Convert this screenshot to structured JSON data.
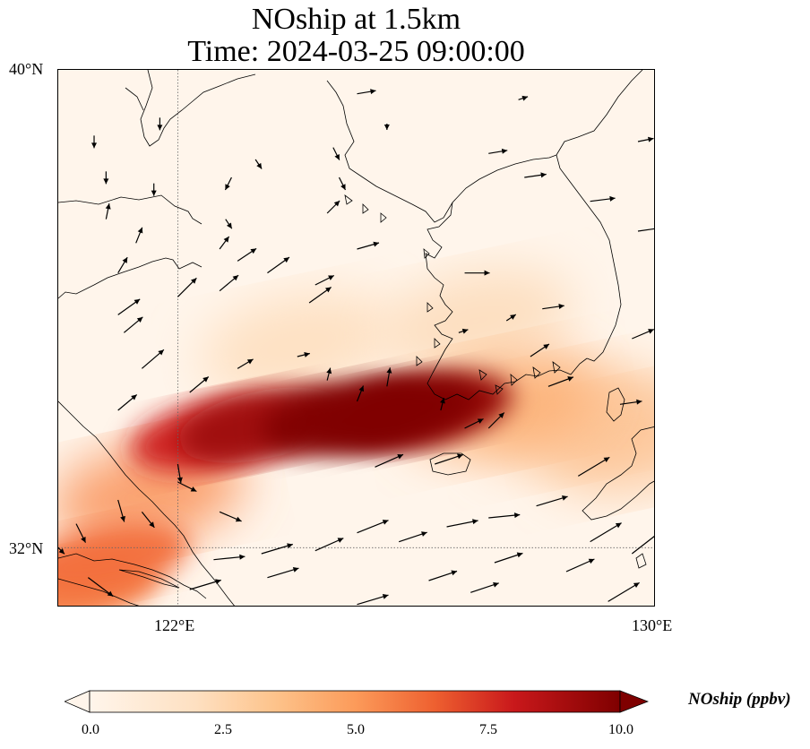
{
  "title": {
    "line1": "NOship at 1.5km",
    "line2": "Time: 2024-03-25 09:00:00"
  },
  "map": {
    "lat_range": [
      31,
      40
    ],
    "lon_range": [
      120,
      130
    ],
    "lat_ticks": [
      {
        "value": 40,
        "label": "40°N"
      },
      {
        "value": 32,
        "label": "32°N"
      }
    ],
    "lon_ticks": [
      {
        "value": 122,
        "label": "122°E"
      },
      {
        "value": 130,
        "label": "130°E"
      }
    ],
    "gridlines": {
      "lat": [
        32
      ],
      "lon": [
        122
      ],
      "style": "dotted"
    },
    "coastline_color": "#000000",
    "arrow_color": "#000000"
  },
  "colorbar": {
    "label": "NOship (ppbv)",
    "vmin": 0.0,
    "vmax": 10.0,
    "extend": "both",
    "ticks": [
      {
        "value": 0.0,
        "label": "0.0"
      },
      {
        "value": 2.5,
        "label": "2.5"
      },
      {
        "value": 5.0,
        "label": "5.0"
      },
      {
        "value": 7.5,
        "label": "7.5"
      },
      {
        "value": 10.0,
        "label": "10.0"
      }
    ],
    "colors": [
      "#fff5eb",
      "#fdd3a8",
      "#fc9b5a",
      "#ee6030",
      "#c9181b",
      "#7f0000"
    ]
  },
  "plume": {
    "field": [
      {
        "lon": 124.8,
        "lat": 34.2,
        "value": 10.0
      },
      {
        "lon": 125.6,
        "lat": 34.25,
        "value": 10.5
      },
      {
        "lon": 126.2,
        "lat": 34.3,
        "value": 9.6
      },
      {
        "lon": 123.4,
        "lat": 34.05,
        "value": 9.2
      },
      {
        "lon": 122.6,
        "lat": 33.9,
        "value": 7.8
      },
      {
        "lon": 121.5,
        "lat": 32.9,
        "value": 4.5
      },
      {
        "lon": 120.8,
        "lat": 31.8,
        "value": 5.5
      },
      {
        "lon": 120.3,
        "lat": 31.3,
        "value": 5.0
      },
      {
        "lon": 127.4,
        "lat": 34.4,
        "value": 3.4
      },
      {
        "lon": 128.6,
        "lat": 34.2,
        "value": 2.6
      },
      {
        "lon": 129.7,
        "lat": 33.8,
        "value": 2.6
      },
      {
        "lon": 127.0,
        "lat": 35.8,
        "value": 1.6
      },
      {
        "lon": 124.0,
        "lat": 35.4,
        "value": 1.5
      }
    ]
  },
  "wind_vectors": [
    {
      "lon": 125.0,
      "lat": 39.6,
      "u": 0.3,
      "v": 0.05
    },
    {
      "lon": 127.7,
      "lat": 39.5,
      "u": 0.15,
      "v": 0.05
    },
    {
      "lon": 127.2,
      "lat": 38.6,
      "u": 0.3,
      "v": 0.05
    },
    {
      "lon": 127.8,
      "lat": 38.2,
      "u": 0.35,
      "v": 0.05
    },
    {
      "lon": 126.8,
      "lat": 36.6,
      "u": 0.4,
      "v": 0.0
    },
    {
      "lon": 125.0,
      "lat": 37.0,
      "u": 0.35,
      "v": 0.1
    },
    {
      "lon": 124.5,
      "lat": 37.6,
      "u": 0.2,
      "v": 0.2
    },
    {
      "lon": 123.5,
      "lat": 36.6,
      "u": 0.35,
      "v": 0.25
    },
    {
      "lon": 122.7,
      "lat": 36.3,
      "u": 0.3,
      "v": 0.25
    },
    {
      "lon": 122.0,
      "lat": 36.2,
      "u": 0.3,
      "v": 0.3
    },
    {
      "lon": 121.1,
      "lat": 35.6,
      "u": 0.3,
      "v": 0.25
    },
    {
      "lon": 121.4,
      "lat": 35.0,
      "u": 0.35,
      "v": 0.3
    },
    {
      "lon": 121.0,
      "lat": 34.3,
      "u": 0.3,
      "v": 0.25
    },
    {
      "lon": 122.2,
      "lat": 34.6,
      "u": 0.3,
      "v": 0.25
    },
    {
      "lon": 123.0,
      "lat": 35.0,
      "u": 0.25,
      "v": 0.15
    },
    {
      "lon": 124.0,
      "lat": 35.2,
      "u": 0.2,
      "v": 0.05
    },
    {
      "lon": 124.2,
      "lat": 36.1,
      "u": 0.35,
      "v": 0.25
    },
    {
      "lon": 122.0,
      "lat": 33.4,
      "u": 0.05,
      "v": -0.3
    },
    {
      "lon": 121.0,
      "lat": 32.8,
      "u": 0.1,
      "v": -0.35
    },
    {
      "lon": 121.4,
      "lat": 32.6,
      "u": 0.2,
      "v": -0.25
    },
    {
      "lon": 120.3,
      "lat": 32.4,
      "u": 0.15,
      "v": -0.3
    },
    {
      "lon": 120.5,
      "lat": 31.5,
      "u": 0.4,
      "v": -0.3
    },
    {
      "lon": 122.6,
      "lat": 31.8,
      "u": 0.5,
      "v": 0.05
    },
    {
      "lon": 123.4,
      "lat": 31.9,
      "u": 0.5,
      "v": 0.15
    },
    {
      "lon": 124.3,
      "lat": 31.95,
      "u": 0.45,
      "v": 0.2
    },
    {
      "lon": 125.0,
      "lat": 32.25,
      "u": 0.5,
      "v": 0.2
    },
    {
      "lon": 125.7,
      "lat": 32.1,
      "u": 0.45,
      "v": 0.15
    },
    {
      "lon": 126.5,
      "lat": 32.35,
      "u": 0.5,
      "v": 0.1
    },
    {
      "lon": 127.2,
      "lat": 32.5,
      "u": 0.5,
      "v": 0.05
    },
    {
      "lon": 128.0,
      "lat": 32.7,
      "u": 0.5,
      "v": 0.15
    },
    {
      "lon": 128.5,
      "lat": 31.6,
      "u": 0.45,
      "v": 0.2
    },
    {
      "lon": 126.2,
      "lat": 31.45,
      "u": 0.45,
      "v": 0.15
    },
    {
      "lon": 125.0,
      "lat": 31.05,
      "u": 0.5,
      "v": 0.15
    },
    {
      "lon": 122.2,
      "lat": 31.3,
      "u": 0.5,
      "v": 0.15
    },
    {
      "lon": 123.5,
      "lat": 31.5,
      "u": 0.5,
      "v": 0.15
    },
    {
      "lon": 127.3,
      "lat": 31.75,
      "u": 0.45,
      "v": 0.15
    },
    {
      "lon": 128.9,
      "lat": 32.1,
      "u": 0.5,
      "v": 0.3
    },
    {
      "lon": 129.6,
      "lat": 31.9,
      "u": 0.45,
      "v": 0.35
    },
    {
      "lon": 129.2,
      "lat": 31.1,
      "u": 0.5,
      "v": 0.3
    },
    {
      "lon": 126.9,
      "lat": 31.25,
      "u": 0.45,
      "v": 0.15
    },
    {
      "lon": 128.7,
      "lat": 33.2,
      "u": 0.5,
      "v": 0.3
    },
    {
      "lon": 126.3,
      "lat": 33.4,
      "u": 0.45,
      "v": 0.15
    },
    {
      "lon": 125.3,
      "lat": 33.35,
      "u": 0.45,
      "v": 0.2
    },
    {
      "lon": 122.0,
      "lat": 33.1,
      "u": 0.3,
      "v": -0.15
    },
    {
      "lon": 122.7,
      "lat": 32.6,
      "u": 0.35,
      "v": -0.15
    },
    {
      "lon": 127.2,
      "lat": 34.0,
      "u": 0.25,
      "v": 0.25
    },
    {
      "lon": 124.5,
      "lat": 34.8,
      "u": 0.05,
      "v": 0.2
    },
    {
      "lon": 125.5,
      "lat": 34.7,
      "u": 0.05,
      "v": 0.3
    },
    {
      "lon": 125.0,
      "lat": 34.45,
      "u": 0.1,
      "v": 0.25
    },
    {
      "lon": 126.7,
      "lat": 35.6,
      "u": 0.15,
      "v": 0.05
    },
    {
      "lon": 127.5,
      "lat": 35.8,
      "u": 0.15,
      "v": 0.1
    },
    {
      "lon": 128.2,
      "lat": 34.7,
      "u": 0.4,
      "v": 0.15
    },
    {
      "lon": 127.9,
      "lat": 35.2,
      "u": 0.3,
      "v": 0.2
    },
    {
      "lon": 126.4,
      "lat": 34.3,
      "u": 0.05,
      "v": 0.2
    },
    {
      "lon": 128.9,
      "lat": 37.8,
      "u": 0.4,
      "v": 0.05
    },
    {
      "lon": 129.7,
      "lat": 37.3,
      "u": 0.35,
      "v": 0.05
    },
    {
      "lon": 128.1,
      "lat": 36.0,
      "u": 0.35,
      "v": 0.05
    },
    {
      "lon": 129.6,
      "lat": 35.5,
      "u": 0.35,
      "v": 0.15
    },
    {
      "lon": 129.7,
      "lat": 38.8,
      "u": 0.25,
      "v": 0.05
    },
    {
      "lon": 121.0,
      "lat": 36.6,
      "u": 0.15,
      "v": 0.25
    },
    {
      "lon": 120.8,
      "lat": 37.5,
      "u": 0.05,
      "v": 0.25
    },
    {
      "lon": 121.3,
      "lat": 37.1,
      "u": 0.1,
      "v": 0.25
    },
    {
      "lon": 121.6,
      "lat": 38.1,
      "u": 0.0,
      "v": -0.2
    },
    {
      "lon": 120.6,
      "lat": 38.9,
      "u": 0.0,
      "v": -0.2
    },
    {
      "lon": 120.8,
      "lat": 38.3,
      "u": 0.0,
      "v": -0.2
    },
    {
      "lon": 121.7,
      "lat": 39.2,
      "u": 0.0,
      "v": -0.2
    },
    {
      "lon": 122.9,
      "lat": 38.2,
      "u": -0.1,
      "v": -0.2
    },
    {
      "lon": 123.3,
      "lat": 38.5,
      "u": 0.1,
      "v": -0.15
    },
    {
      "lon": 122.8,
      "lat": 37.5,
      "u": 0.1,
      "v": -0.15
    },
    {
      "lon": 122.7,
      "lat": 37.0,
      "u": 0.15,
      "v": 0.2
    },
    {
      "lon": 124.6,
      "lat": 38.7,
      "u": 0.1,
      "v": -0.2
    },
    {
      "lon": 124.7,
      "lat": 38.2,
      "u": 0.1,
      "v": -0.2
    },
    {
      "lon": 125.5,
      "lat": 39.1,
      "u": 0.0,
      "v": -0.1
    },
    {
      "lon": 123.0,
      "lat": 36.8,
      "u": 0.3,
      "v": 0.2
    },
    {
      "lon": 124.3,
      "lat": 36.4,
      "u": 0.3,
      "v": 0.15
    },
    {
      "lon": 129.4,
      "lat": 34.4,
      "u": 0.35,
      "v": 0.05
    },
    {
      "lon": 126.8,
      "lat": 34.0,
      "u": 0.3,
      "v": 0.15
    },
    {
      "lon": 121.0,
      "lat": 35.9,
      "u": 0.35,
      "v": 0.25
    },
    {
      "lon": 120.0,
      "lat": 32.0,
      "u": 0.1,
      "v": -0.1
    }
  ]
}
